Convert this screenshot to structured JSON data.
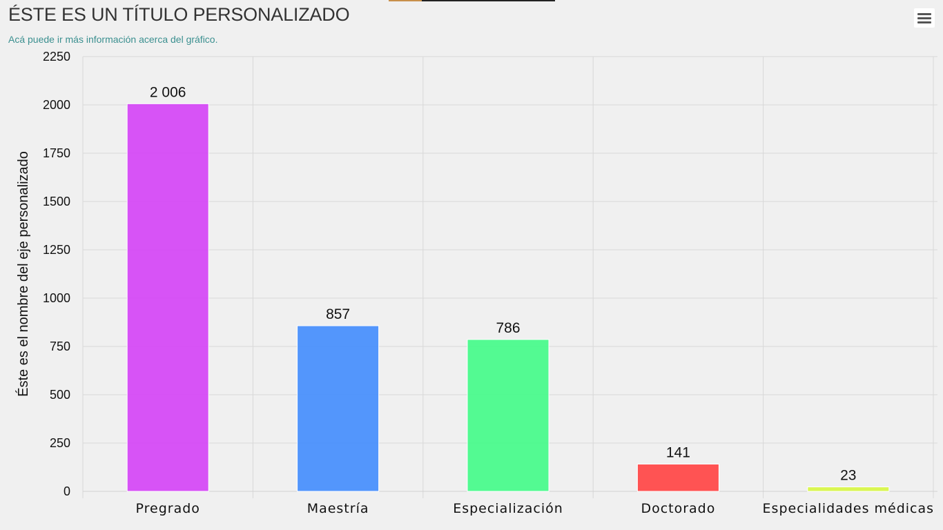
{
  "header": {
    "title": "ÉSTE ES UN TÍTULO PERSONALIZADO",
    "subtitle": "Acá puede ir más información acerca del gráfico.",
    "menu_icon": "hamburger-menu-icon"
  },
  "chart_data": {
    "type": "bar",
    "title": "ÉSTE ES UN TÍTULO PERSONALIZADO",
    "subtitle": "Acá puede ir más información acerca del gráfico.",
    "xlabel": "",
    "ylabel": "Éste es el nombre del eje personalizado",
    "categories": [
      "Pregrado",
      "Maestría",
      "Especialización",
      "Doctorado",
      "Especialidades médicas"
    ],
    "values": [
      2006,
      857,
      786,
      141,
      23
    ],
    "data_labels": [
      "2 006",
      "857",
      "786",
      "141",
      "23"
    ],
    "colors": [
      "#d54af5",
      "#4a90fc",
      "#4afa8c",
      "#ff4a4a",
      "#d8f54a"
    ],
    "ylim": [
      0,
      2250
    ],
    "yticks": [
      0,
      250,
      500,
      750,
      1000,
      1250,
      1500,
      1750,
      2000,
      2250
    ],
    "grid": true,
    "legend": "none"
  }
}
